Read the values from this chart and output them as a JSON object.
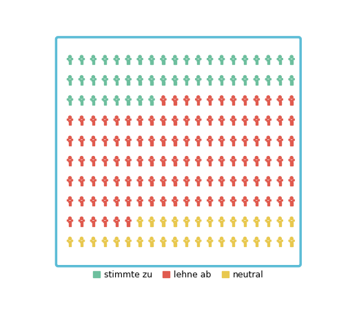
{
  "total": 200,
  "cols": 20,
  "rows": 10,
  "counts": {
    "green": 48,
    "red": 118,
    "yellow": 34
  },
  "colors": {
    "green": "#6dbf9e",
    "red": "#e05a4e",
    "yellow": "#e8c84e"
  },
  "legend_labels": [
    "stimmte zu",
    "lehne ab",
    "neutral"
  ],
  "legend_colors": [
    "#6dbf9e",
    "#e05a4e",
    "#e8c84e"
  ],
  "background_color": "#ffffff",
  "border_color": "#5bbcd6",
  "figure_bg": "#ffffff"
}
